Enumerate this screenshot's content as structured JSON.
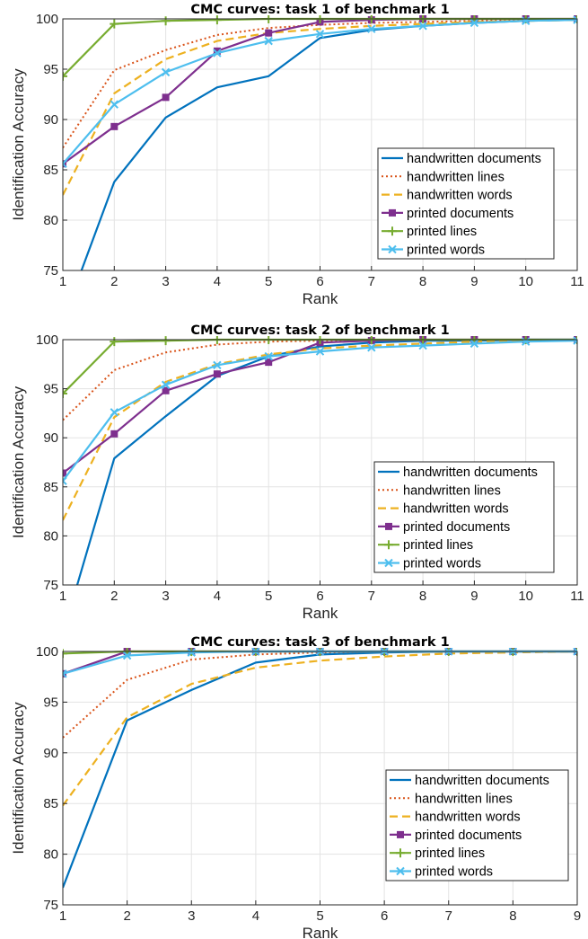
{
  "chart_data": [
    {
      "type": "line",
      "title": "CMC curves: task 1 of benchmark 1",
      "xlabel": "Rank",
      "ylabel": "Identification Accuracy",
      "xlim": [
        1,
        11
      ],
      "ylim": [
        75,
        100
      ],
      "xticks": [
        1,
        2,
        3,
        4,
        5,
        6,
        7,
        8,
        9,
        10,
        11
      ],
      "yticks": [
        75,
        80,
        85,
        90,
        95,
        100
      ],
      "grid": true,
      "legend_position": "lower-right",
      "x": [
        1,
        2,
        3,
        4,
        5,
        6,
        7,
        8,
        9,
        10,
        11
      ],
      "series": [
        {
          "name": "handwritten documents",
          "color": "#0072BD",
          "style": "solid",
          "marker": "none",
          "values": [
            70.0,
            83.8,
            90.2,
            93.2,
            94.3,
            98.1,
            98.9,
            99.3,
            99.6,
            99.8,
            99.9
          ]
        },
        {
          "name": "handwritten lines",
          "color": "#D95319",
          "style": "dotted",
          "marker": "none",
          "values": [
            87.2,
            94.9,
            96.9,
            98.4,
            99.1,
            99.4,
            99.6,
            99.7,
            99.8,
            99.9,
            100.0
          ]
        },
        {
          "name": "handwritten words",
          "color": "#EDB120",
          "style": "dashed",
          "marker": "none",
          "values": [
            82.5,
            92.6,
            96.0,
            97.8,
            98.6,
            99.0,
            99.3,
            99.5,
            99.7,
            99.8,
            99.9
          ]
        },
        {
          "name": "printed documents",
          "color": "#7E2F8E",
          "style": "solid",
          "marker": "square",
          "values": [
            85.6,
            89.3,
            92.2,
            96.8,
            98.6,
            99.7,
            99.9,
            100.0,
            100.0,
            100.0,
            100.0
          ]
        },
        {
          "name": "printed lines",
          "color": "#77AC30",
          "style": "solid",
          "marker": "plus",
          "values": [
            94.3,
            99.5,
            99.8,
            99.9,
            100.0,
            100.0,
            100.0,
            100.0,
            100.0,
            100.0,
            100.0
          ]
        },
        {
          "name": "printed words",
          "color": "#4DBEEE",
          "style": "solid",
          "marker": "x",
          "values": [
            85.6,
            91.5,
            94.7,
            96.6,
            97.8,
            98.5,
            99.0,
            99.3,
            99.6,
            99.8,
            99.9
          ]
        }
      ]
    },
    {
      "type": "line",
      "title": "CMC curves: task 2 of benchmark 1",
      "xlabel": "Rank",
      "ylabel": "Identification Accuracy",
      "xlim": [
        1,
        11
      ],
      "ylim": [
        75,
        100
      ],
      "xticks": [
        1,
        2,
        3,
        4,
        5,
        6,
        7,
        8,
        9,
        10,
        11
      ],
      "yticks": [
        75,
        80,
        85,
        90,
        95,
        100
      ],
      "grid": true,
      "legend_position": "lower-right",
      "x": [
        1,
        2,
        3,
        4,
        5,
        6,
        7,
        8,
        9,
        10,
        11
      ],
      "series": [
        {
          "name": "handwritten documents",
          "color": "#0072BD",
          "style": "solid",
          "marker": "none",
          "values": [
            70.0,
            87.9,
            92.2,
            96.3,
            98.3,
            99.3,
            99.7,
            99.9,
            99.9,
            100.0,
            100.0
          ]
        },
        {
          "name": "handwritten lines",
          "color": "#D95319",
          "style": "dotted",
          "marker": "none",
          "values": [
            91.8,
            96.9,
            98.7,
            99.5,
            99.8,
            99.9,
            100.0,
            100.0,
            100.0,
            100.0,
            100.0
          ]
        },
        {
          "name": "handwritten words",
          "color": "#EDB120",
          "style": "dashed",
          "marker": "none",
          "values": [
            81.6,
            92.1,
            95.7,
            97.5,
            98.5,
            99.1,
            99.4,
            99.6,
            99.8,
            99.9,
            100.0
          ]
        },
        {
          "name": "printed documents",
          "color": "#7E2F8E",
          "style": "solid",
          "marker": "square",
          "values": [
            86.4,
            90.4,
            94.8,
            96.5,
            97.7,
            99.7,
            99.9,
            100.0,
            100.0,
            100.0,
            100.0
          ]
        },
        {
          "name": "printed lines",
          "color": "#77AC30",
          "style": "solid",
          "marker": "plus",
          "values": [
            94.5,
            99.8,
            99.9,
            100.0,
            100.0,
            100.0,
            100.0,
            100.0,
            100.0,
            100.0,
            100.0
          ]
        },
        {
          "name": "printed words",
          "color": "#4DBEEE",
          "style": "solid",
          "marker": "x",
          "values": [
            85.6,
            92.6,
            95.4,
            97.4,
            98.3,
            98.8,
            99.2,
            99.4,
            99.6,
            99.8,
            99.9
          ]
        }
      ]
    },
    {
      "type": "line",
      "title": "CMC curves: task 3 of benchmark 1",
      "xlabel": "Rank",
      "ylabel": "Identification Accuracy",
      "xlim": [
        1,
        9
      ],
      "ylim": [
        75,
        100
      ],
      "xticks": [
        1,
        2,
        3,
        4,
        5,
        6,
        7,
        8,
        9
      ],
      "yticks": [
        75,
        80,
        85,
        90,
        95,
        100
      ],
      "grid": true,
      "legend_position": "lower-right",
      "x": [
        1,
        2,
        3,
        4,
        5,
        6,
        7,
        8,
        9
      ],
      "series": [
        {
          "name": "handwritten documents",
          "color": "#0072BD",
          "style": "solid",
          "marker": "none",
          "values": [
            76.7,
            93.2,
            96.2,
            98.9,
            99.7,
            99.9,
            100.0,
            100.0,
            100.0
          ]
        },
        {
          "name": "handwritten lines",
          "color": "#D95319",
          "style": "dotted",
          "marker": "none",
          "values": [
            91.5,
            97.2,
            99.2,
            99.7,
            99.9,
            100.0,
            100.0,
            100.0,
            100.0
          ]
        },
        {
          "name": "handwritten words",
          "color": "#EDB120",
          "style": "dashed",
          "marker": "none",
          "values": [
            84.8,
            93.5,
            96.8,
            98.4,
            99.1,
            99.5,
            99.8,
            99.9,
            100.0
          ]
        },
        {
          "name": "printed documents",
          "color": "#7E2F8E",
          "style": "solid",
          "marker": "square",
          "values": [
            97.8,
            100.0,
            100.0,
            100.0,
            100.0,
            100.0,
            100.0,
            100.0,
            100.0
          ]
        },
        {
          "name": "printed lines",
          "color": "#77AC30",
          "style": "solid",
          "marker": "plus",
          "values": [
            99.8,
            100.0,
            100.0,
            100.0,
            100.0,
            100.0,
            100.0,
            100.0,
            100.0
          ]
        },
        {
          "name": "printed words",
          "color": "#4DBEEE",
          "style": "solid",
          "marker": "x",
          "values": [
            97.8,
            99.6,
            99.9,
            100.0,
            100.0,
            100.0,
            100.0,
            100.0,
            100.0
          ]
        }
      ]
    }
  ]
}
